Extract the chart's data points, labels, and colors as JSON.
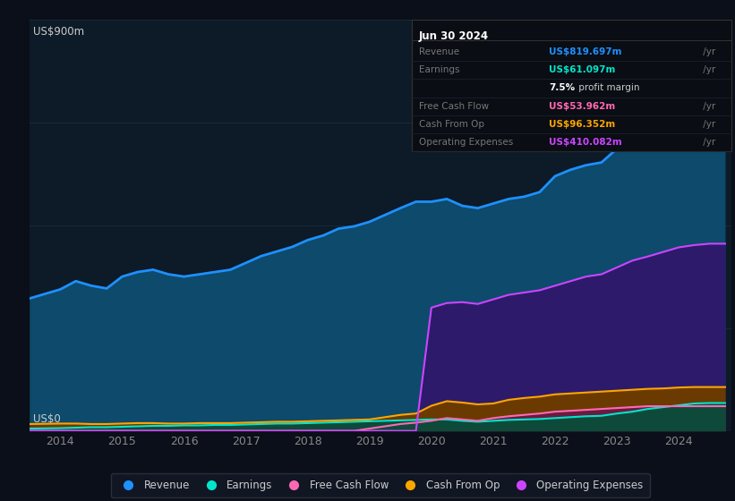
{
  "background_color": "#0b0f19",
  "plot_bg_color": "#0d1a27",
  "grid_color": "#1c2d3d",
  "ylabel": "US$900m",
  "y0label": "US$0",
  "ylim": [
    0,
    900
  ],
  "xlim": [
    2013.5,
    2024.85
  ],
  "xticks": [
    2014,
    2015,
    2016,
    2017,
    2018,
    2019,
    2020,
    2021,
    2022,
    2023,
    2024
  ],
  "yticks": [
    0,
    225,
    450,
    675,
    900
  ],
  "info_box": {
    "date": "Jun 30 2024",
    "rows": [
      {
        "label": "Revenue",
        "value": "US$819.697m",
        "value_color": "#1e90ff",
        "suffix_color": "#888888"
      },
      {
        "label": "Earnings",
        "value": "US$61.097m",
        "value_color": "#00e5cc",
        "suffix_color": "#888888"
      },
      {
        "label": "",
        "value": "7.5%",
        "value_color": "#ffffff",
        "suffix": " profit margin",
        "suffix_color": "#cccccc"
      },
      {
        "label": "Free Cash Flow",
        "value": "US$53.962m",
        "value_color": "#ff69b4",
        "suffix_color": "#888888"
      },
      {
        "label": "Cash From Op",
        "value": "US$96.352m",
        "value_color": "#ffa500",
        "suffix_color": "#888888"
      },
      {
        "label": "Operating Expenses",
        "value": "US$410.082m",
        "value_color": "#cc44ff",
        "suffix_color": "#888888"
      }
    ]
  },
  "legend": [
    {
      "label": "Revenue",
      "color": "#1e90ff"
    },
    {
      "label": "Earnings",
      "color": "#00e5cc"
    },
    {
      "label": "Free Cash Flow",
      "color": "#ff69b4"
    },
    {
      "label": "Cash From Op",
      "color": "#ffa500"
    },
    {
      "label": "Operating Expenses",
      "color": "#cc44ff"
    }
  ],
  "revenue_fill_color": "#0d4a6b",
  "opex_fill_color": "#2d1a6b",
  "cashfromop_fill_color": "#6b3a00",
  "fcf_fill_color": "#6b1a40",
  "earnings_fill_color": "#0d4a3a",
  "years": [
    2013.5,
    2014.0,
    2014.25,
    2014.5,
    2014.75,
    2015.0,
    2015.25,
    2015.5,
    2015.75,
    2016.0,
    2016.25,
    2016.5,
    2016.75,
    2017.0,
    2017.25,
    2017.5,
    2017.75,
    2018.0,
    2018.25,
    2018.5,
    2018.75,
    2019.0,
    2019.25,
    2019.5,
    2019.75,
    2020.0,
    2020.25,
    2020.5,
    2020.75,
    2021.0,
    2021.25,
    2021.5,
    2021.75,
    2022.0,
    2022.25,
    2022.5,
    2022.75,
    2023.0,
    2023.25,
    2023.5,
    2023.75,
    2024.0,
    2024.25,
    2024.5,
    2024.75
  ],
  "revenue": [
    290,
    310,
    328,
    318,
    312,
    338,
    348,
    353,
    343,
    338,
    343,
    348,
    353,
    368,
    383,
    393,
    403,
    418,
    428,
    443,
    448,
    458,
    473,
    488,
    502,
    502,
    508,
    493,
    488,
    498,
    508,
    513,
    523,
    558,
    572,
    582,
    588,
    618,
    648,
    672,
    698,
    738,
    778,
    818,
    820
  ],
  "earnings": [
    5,
    6,
    7,
    8,
    8,
    9,
    10,
    11,
    11,
    12,
    12,
    13,
    13,
    14,
    15,
    16,
    16,
    17,
    18,
    19,
    20,
    21,
    22,
    23,
    24,
    25,
    25,
    22,
    20,
    22,
    24,
    25,
    26,
    28,
    30,
    32,
    33,
    38,
    42,
    48,
    52,
    56,
    60,
    61,
    61
  ],
  "fcf": [
    0,
    0,
    0,
    0,
    0,
    0,
    0,
    0,
    0,
    0,
    0,
    0,
    0,
    0,
    0,
    0,
    0,
    0,
    0,
    0,
    0,
    5,
    10,
    15,
    18,
    22,
    28,
    25,
    22,
    28,
    32,
    35,
    38,
    42,
    44,
    46,
    48,
    50,
    52,
    54,
    54,
    54,
    54,
    54,
    54
  ],
  "cashfromop": [
    15,
    16,
    16,
    15,
    15,
    16,
    17,
    17,
    16,
    16,
    17,
    17,
    17,
    18,
    19,
    20,
    20,
    21,
    22,
    23,
    24,
    25,
    30,
    35,
    38,
    55,
    65,
    62,
    58,
    60,
    68,
    72,
    75,
    80,
    82,
    84,
    86,
    88,
    90,
    92,
    93,
    95,
    96,
    96,
    96
  ],
  "opex": [
    0,
    0,
    0,
    0,
    0,
    0,
    0,
    0,
    0,
    0,
    0,
    0,
    0,
    0,
    0,
    0,
    0,
    0,
    0,
    0,
    0,
    0,
    0,
    0,
    0,
    270,
    280,
    282,
    278,
    288,
    298,
    303,
    308,
    318,
    328,
    338,
    343,
    358,
    373,
    382,
    392,
    402,
    407,
    410,
    410
  ]
}
